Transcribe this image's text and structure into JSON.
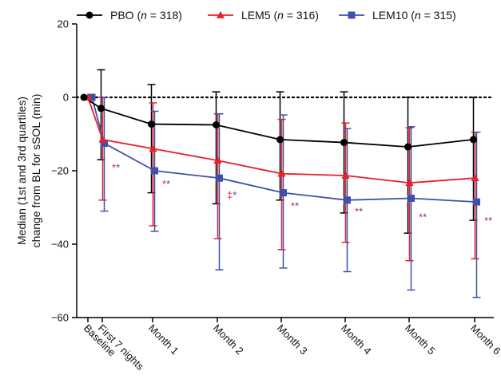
{
  "chart_data": {
    "type": "line",
    "title": "",
    "xlabel": "",
    "ylabel": "Median (1st and 3rd quartiles) change from BL for sSOL (min)",
    "ylabel_lines": [
      "Median (1st and 3rd quartiles)",
      "change from BL for sSOL (min)"
    ],
    "ylim": [
      -60,
      20
    ],
    "yticks": [
      20,
      0,
      -20,
      -40,
      -60
    ],
    "ytick_labels": [
      "20",
      "0",
      "−20",
      "−40",
      "−60"
    ],
    "categories": [
      "Baseline",
      "First 7 nights",
      "Month 1",
      "Month 2",
      "Month 3",
      "Month 4",
      "Month 5",
      "Month 6"
    ],
    "reference_line": 0,
    "legend_position": "top",
    "grid": false,
    "series": [
      {
        "name": "PBO",
        "n_label": "n",
        "n_value": "= 318",
        "color": "#000000",
        "marker": "circle",
        "values": [
          0,
          -3,
          -7.3,
          -7.5,
          -11.5,
          -12.3,
          -13.5,
          -11.5
        ],
        "q1": [
          0,
          -17,
          -26,
          -29,
          -28,
          -31.5,
          -37,
          -33.5
        ],
        "q3": [
          0,
          7.5,
          3.5,
          1.5,
          1.5,
          1.5,
          0,
          0
        ]
      },
      {
        "name": "LEM5",
        "n_label": "n",
        "n_value": "= 316",
        "color": "#e8202a",
        "marker": "triangle",
        "values": [
          0,
          -11.5,
          -14,
          -17.2,
          -20.8,
          -21.3,
          -23.3,
          -22
        ],
        "q1": [
          0,
          -28,
          -35,
          -38.5,
          -41.5,
          -39.5,
          -44.5,
          -44
        ],
        "q3": [
          0,
          0,
          -1.5,
          -4.5,
          -6,
          -7,
          -8.3,
          -9.5
        ]
      },
      {
        "name": "LEM10",
        "n_label": "n",
        "n_value": "= 315",
        "color": "#3f51a5",
        "marker": "square",
        "values": [
          0,
          -12.5,
          -20,
          -22,
          -26,
          -28,
          -27.5,
          -28.5
        ],
        "q1": [
          0,
          -31,
          -36.5,
          -47,
          -46.5,
          -47.5,
          -52.5,
          -54.5
        ],
        "q3": [
          0,
          0,
          -3.8,
          -4.5,
          -4.8,
          -8.5,
          -8,
          -9.5
        ]
      }
    ],
    "annotations": [
      {
        "category": "First 7 nights",
        "y": -19,
        "marks": [
          {
            "text": "*",
            "color": "#e8202a"
          },
          {
            "text": "*",
            "color": "#3f51a5"
          }
        ]
      },
      {
        "category": "Month 1",
        "y": -23.5,
        "marks": [
          {
            "text": "*",
            "color": "#e8202a"
          },
          {
            "text": "*",
            "color": "#3f51a5"
          }
        ]
      },
      {
        "category": "Month 2",
        "y": -26.5,
        "marks": [
          {
            "text": "‡",
            "color": "#e8202a"
          },
          {
            "text": "*",
            "color": "#3f51a5"
          }
        ]
      },
      {
        "category": "Month 3",
        "y": -29.5,
        "marks": [
          {
            "text": "*",
            "color": "#e8202a"
          },
          {
            "text": "*",
            "color": "#3f51a5"
          }
        ]
      },
      {
        "category": "Month 4",
        "y": -31,
        "marks": [
          {
            "text": "*",
            "color": "#e8202a"
          },
          {
            "text": "*",
            "color": "#3f51a5"
          }
        ]
      },
      {
        "category": "Month 5",
        "y": -32.5,
        "marks": [
          {
            "text": "*",
            "color": "#e8202a"
          },
          {
            "text": "*",
            "color": "#3f51a5"
          }
        ]
      },
      {
        "category": "Month 6",
        "y": -33.5,
        "marks": [
          {
            "text": "*",
            "color": "#e8202a"
          },
          {
            "text": "*",
            "color": "#3f51a5"
          }
        ]
      }
    ]
  }
}
